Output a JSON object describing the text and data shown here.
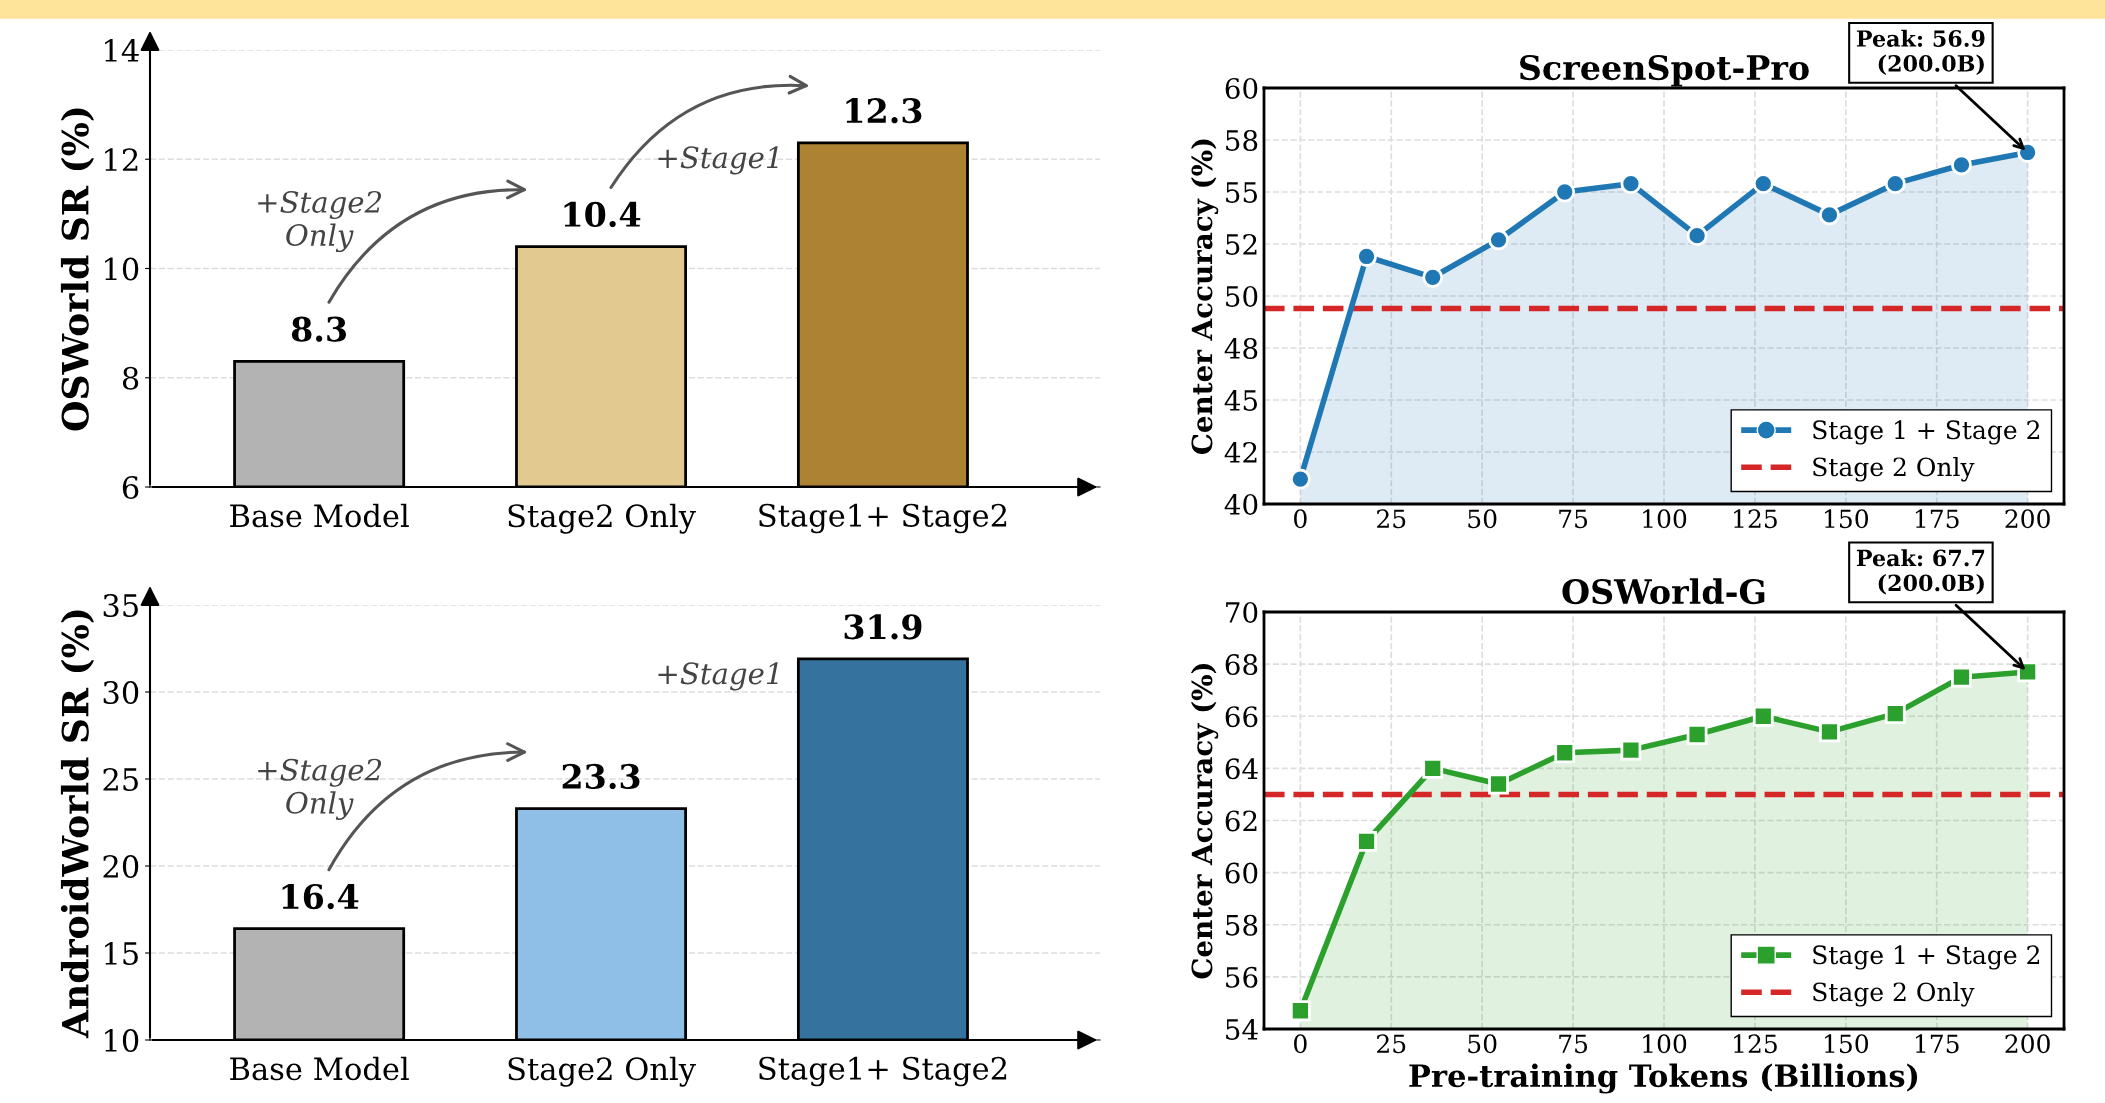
{
  "chart_data": [
    {
      "type": "bar",
      "ylabel": "OSWorld SR (%)",
      "categories": [
        "Base Model",
        "Stage2 Only",
        "Stage1+ Stage2"
      ],
      "values": [
        8.3,
        10.4,
        12.3
      ],
      "colors": [
        "#b3b3b3",
        "#e2c98f",
        "#ad8233"
      ],
      "ylim": [
        6,
        14
      ],
      "yticks": [
        6,
        8,
        10,
        12,
        14
      ],
      "grid": "y",
      "data_labels": true,
      "annotations": [
        "+Stage2\nOnly",
        "+Stage1"
      ]
    },
    {
      "type": "area",
      "title": "ScreenSpot-Pro",
      "ylabel": "Center Accuracy (%)",
      "x": [
        0,
        18.2,
        36.4,
        54.5,
        72.7,
        90.9,
        109.1,
        127.3,
        145.5,
        163.6,
        181.8,
        200
      ],
      "series": [
        {
          "name": "Stage 1 + Stage 2",
          "color": "#1f77b4",
          "marker": "circle",
          "values": [
            41.2,
            51.9,
            50.9,
            52.7,
            55.0,
            55.4,
            52.9,
            55.4,
            53.9,
            55.4,
            56.3,
            56.9
          ]
        }
      ],
      "ref_lines": [
        {
          "axis": "y",
          "value": 49.4,
          "label": "Stage 2 Only",
          "color": "#d62728",
          "line_style": "dashed"
        }
      ],
      "xlim": [
        -10,
        210
      ],
      "xticks": [
        0,
        25,
        50,
        75,
        100,
        125,
        150,
        175,
        200
      ],
      "ylim": [
        40,
        60
      ],
      "yticks": [
        40,
        {
          "value": 42.5,
          "label": "42"
        },
        45,
        {
          "value": 47.5,
          "label": "48"
        },
        50,
        {
          "value": 52.5,
          "label": "52"
        },
        55,
        {
          "value": 57.5,
          "label": "58"
        },
        60
      ],
      "grid": true,
      "legend": "bottom right",
      "annotations": [
        {
          "text": "Peak: 56.9\n(200.0B)",
          "x": 200,
          "y": 56.9
        }
      ]
    },
    {
      "type": "bar",
      "ylabel": "AndroidWorld SR (%)",
      "categories": [
        "Base Model",
        "Stage2 Only",
        "Stage1+ Stage2"
      ],
      "values": [
        16.4,
        23.3,
        31.9
      ],
      "colors": [
        "#b3b3b3",
        "#8fbfe6",
        "#35729e"
      ],
      "ylim": [
        10,
        35
      ],
      "yticks": [
        10,
        15,
        20,
        25,
        30,
        35
      ],
      "grid": "y",
      "data_labels": true,
      "annotations": [
        "+Stage2\nOnly",
        "+Stage1"
      ]
    },
    {
      "type": "area",
      "title": "OSWorld-G",
      "xlabel": "Pre-training Tokens (Billions)",
      "ylabel": "Center Accuracy (%)",
      "x": [
        0,
        18.2,
        36.4,
        54.5,
        72.7,
        90.9,
        109.1,
        127.3,
        145.5,
        163.6,
        181.8,
        200
      ],
      "series": [
        {
          "name": "Stage 1 + Stage 2",
          "color": "#2ca02c",
          "marker": "square",
          "values": [
            54.7,
            61.2,
            64.0,
            63.4,
            64.6,
            64.7,
            65.3,
            66.0,
            65.4,
            66.1,
            67.5,
            67.7
          ]
        }
      ],
      "ref_lines": [
        {
          "axis": "y",
          "value": 63.0,
          "label": "Stage 2 Only",
          "color": "#d62728",
          "line_style": "dashed"
        }
      ],
      "xlim": [
        -10,
        210
      ],
      "xticks": [
        0,
        25,
        50,
        75,
        100,
        125,
        150,
        175,
        200
      ],
      "ylim": [
        54,
        70
      ],
      "yticks": [
        54,
        56,
        58,
        60,
        62,
        64,
        66,
        68,
        70
      ],
      "grid": true,
      "legend": "bottom right",
      "annotations": [
        {
          "text": "Peak: 67.7\n(200.0B)",
          "x": 200,
          "y": 67.7
        }
      ]
    }
  ]
}
